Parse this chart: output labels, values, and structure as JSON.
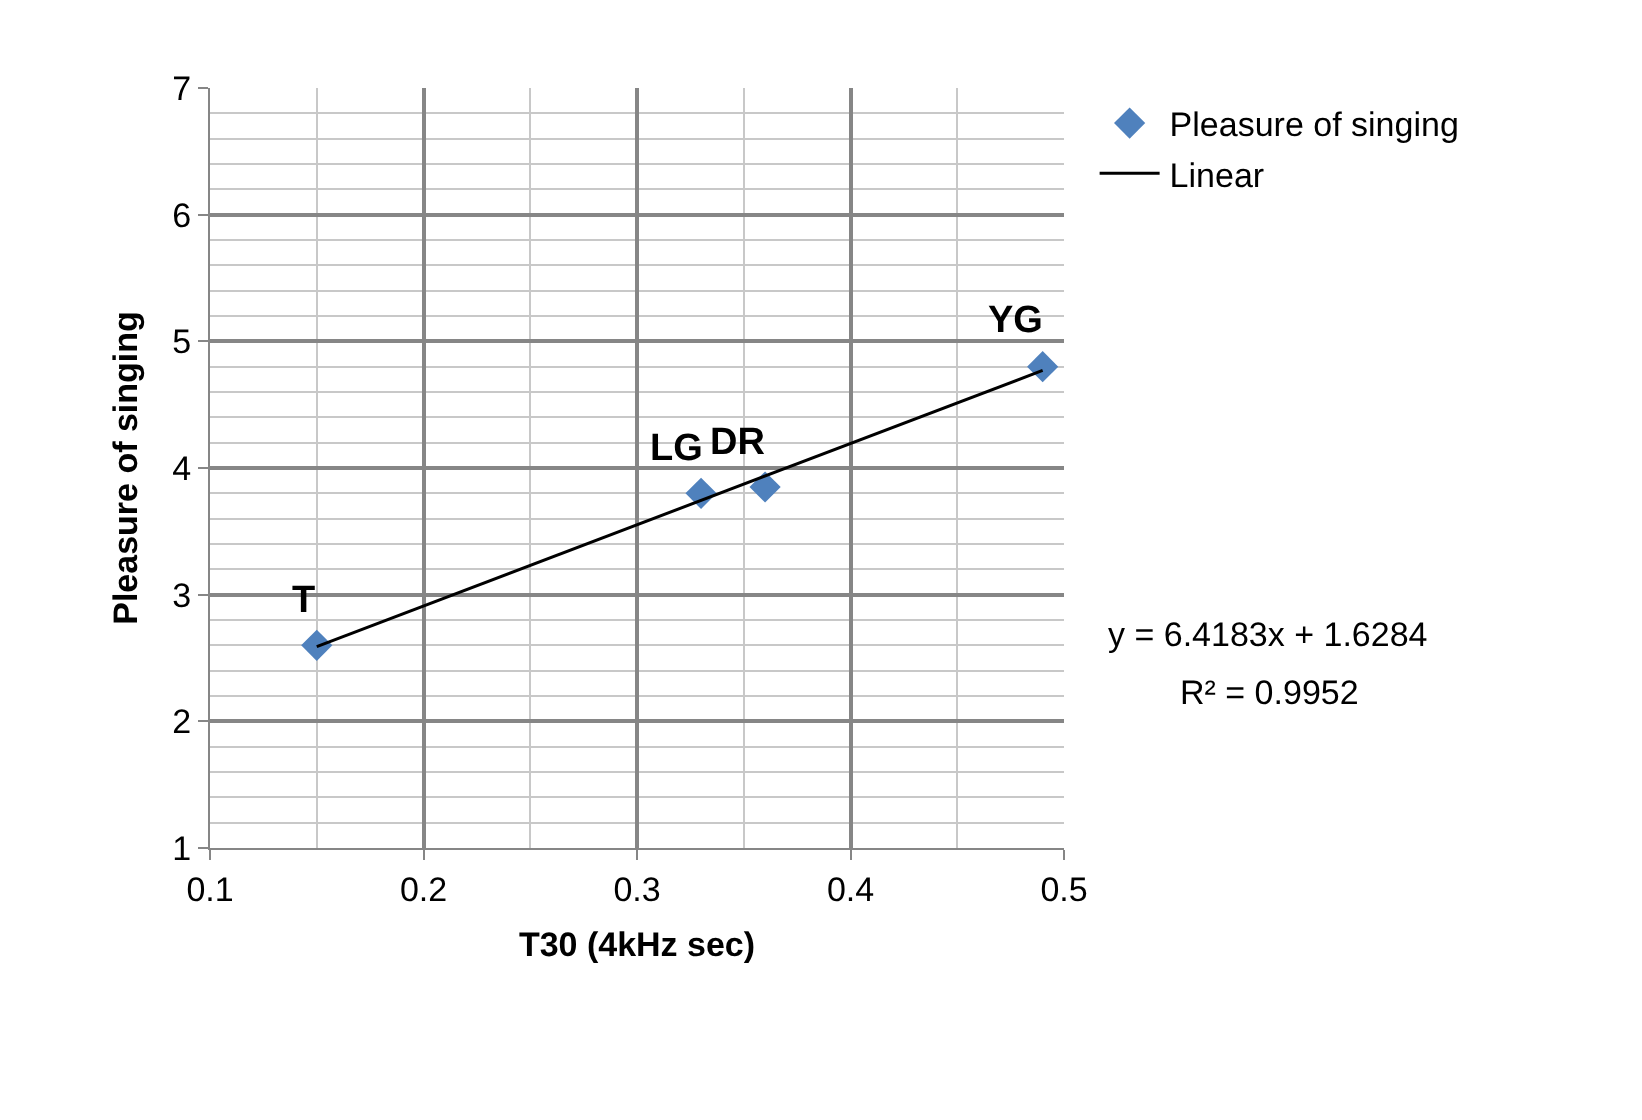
{
  "chart_data": {
    "type": "scatter",
    "xlabel": "T30 (4kHz sec)",
    "ylabel": "Pleasure of singing",
    "series": [
      {
        "name": "Pleasure of singing",
        "color": "#4f81bd",
        "marker": "diamond",
        "x": [
          0.15,
          0.33,
          0.36,
          0.49
        ],
        "values": [
          2.6,
          3.8,
          3.85,
          4.8
        ]
      },
      {
        "name": "Linear",
        "type": "line",
        "color": "#000000",
        "marker": "none",
        "line_style": "solid",
        "x": [
          0.15,
          0.49
        ],
        "values": [
          2.59,
          4.77
        ]
      }
    ],
    "annotations": [
      {
        "text": "T",
        "x": 0.15,
        "y": 2.6
      },
      {
        "text": "LG",
        "x": 0.33,
        "y": 3.8
      },
      {
        "text": "DR",
        "x": 0.36,
        "y": 3.85
      },
      {
        "text": "YG",
        "x": 0.49,
        "y": 4.8
      },
      "y = 6.4183x + 1.6284",
      "R² = 0.9952"
    ],
    "xlim": [
      0.1,
      0.5
    ],
    "xticks": [
      0.1,
      0.2,
      0.3,
      0.4,
      0.5
    ],
    "ylim": [
      1,
      7
    ],
    "yticks": [
      1,
      2,
      3,
      4,
      5,
      6,
      7
    ],
    "grid": true,
    "legend": "top right"
  }
}
